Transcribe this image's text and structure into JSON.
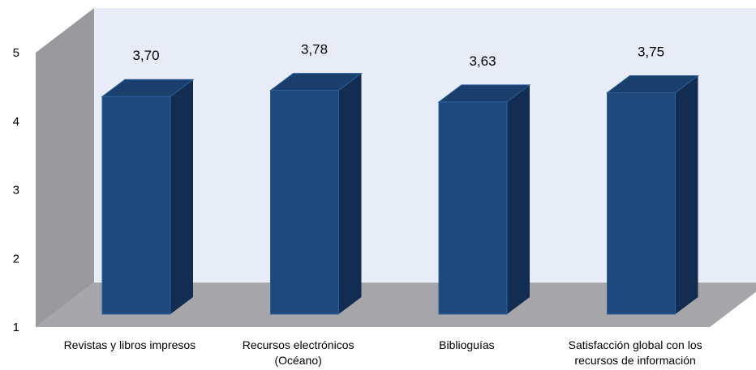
{
  "chart_data": {
    "type": "bar",
    "categories": [
      "Revistas y libros impresos",
      "Recursos electrónicos (Océano)",
      "Biblioguías",
      "Satisfacción global con los recursos de información"
    ],
    "category_label_lines": [
      [
        "Revistas y libros impresos"
      ],
      [
        "Recursos electrónicos",
        "(Océano)"
      ],
      [
        "Biblioguías"
      ],
      [
        "Satisfacción global con los",
        "recursos de información"
      ]
    ],
    "values": [
      3.7,
      3.78,
      3.63,
      3.75
    ],
    "data_labels": [
      "3,70",
      "3,78",
      "3,63",
      "3,75"
    ],
    "yticks": [
      "1",
      "2",
      "3",
      "4",
      "5"
    ],
    "ylim": [
      1,
      5
    ],
    "title": "",
    "xlabel": "",
    "ylabel": "",
    "grid": false,
    "legend": "none",
    "three_d": true,
    "colors": {
      "bar_front": "#1f497d",
      "bar_top": "#1a3f6c",
      "bar_side": "#132d52",
      "bar_edge": "#2e5f9a",
      "back_wall": "#e8ecf7",
      "side_wall": "#9a9a9e",
      "floor": "#a6a6aa"
    }
  }
}
